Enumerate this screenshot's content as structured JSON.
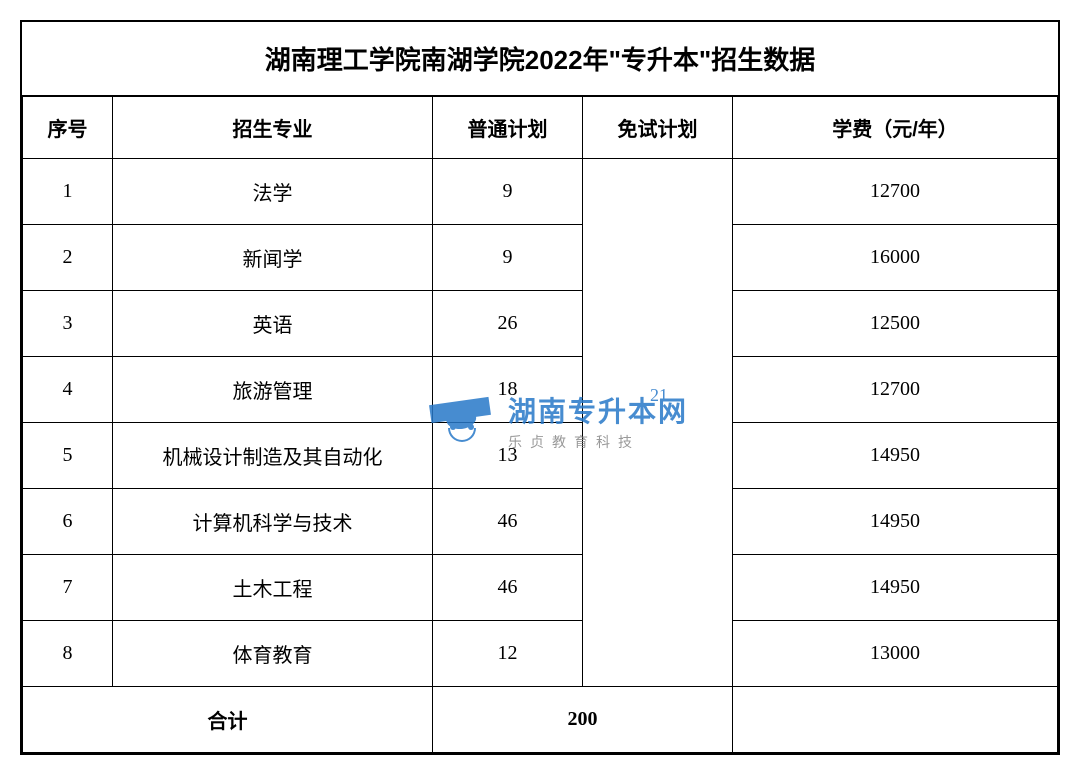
{
  "table": {
    "title": "湖南理工学院南湖学院2022年\"专升本\"招生数据",
    "columns": [
      "序号",
      "招生专业",
      "普通计划",
      "免试计划",
      "学费（元/年）"
    ],
    "rows": [
      {
        "seq": "1",
        "major": "法学",
        "plan": "9",
        "fee": "12700"
      },
      {
        "seq": "2",
        "major": "新闻学",
        "plan": "9",
        "fee": "16000"
      },
      {
        "seq": "3",
        "major": "英语",
        "plan": "26",
        "fee": "12500"
      },
      {
        "seq": "4",
        "major": "旅游管理",
        "plan": "18",
        "fee": "12700"
      },
      {
        "seq": "5",
        "major": "机械设计制造及其自动化",
        "plan": "13",
        "fee": "14950"
      },
      {
        "seq": "6",
        "major": "计算机科学与技术",
        "plan": "46",
        "fee": "14950"
      },
      {
        "seq": "7",
        "major": "土木工程",
        "plan": "46",
        "fee": "14950"
      },
      {
        "seq": "8",
        "major": "体育教育",
        "plan": "12",
        "fee": "13000"
      }
    ],
    "total_label": "合计",
    "total_value": "200",
    "exempt_value": "21",
    "border_color": "#000000",
    "background_color": "#ffffff",
    "title_fontsize": 26,
    "header_fontsize": 20,
    "cell_fontsize": 20
  },
  "watermark": {
    "main_text": "湖南专升本网",
    "sub_text": "乐贞教育科技",
    "number": "21",
    "brand_color": "#2878c8",
    "sub_color": "#888888"
  }
}
